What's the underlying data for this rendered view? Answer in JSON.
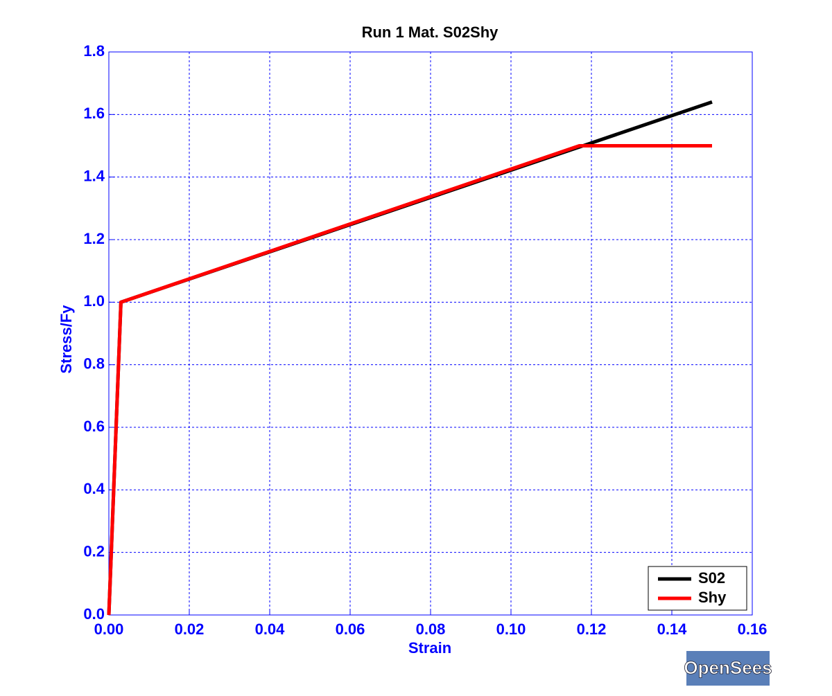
{
  "chart_data": {
    "type": "line",
    "title": "Run 1   Mat. S02Shy",
    "x_label": "Strain",
    "y_label": "Stress/Fy",
    "x": [
      0,
      0.003,
      0.117,
      0.15
    ],
    "series": [
      {
        "name": "S02",
        "color": "#000000",
        "values": [
          0,
          1.0,
          1.496,
          1.64
        ]
      },
      {
        "name": "Shy",
        "color": "#ff0000",
        "values": [
          0,
          1.0,
          1.5,
          1.5
        ]
      }
    ],
    "xlim": [
      0,
      0.16
    ],
    "xticks": [
      {
        "value": 0,
        "label": "0.00"
      },
      0.02,
      0.04,
      0.06,
      0.08,
      {
        "value": 0.1,
        "label": "0.10"
      },
      0.12,
      0.14,
      0.16
    ],
    "ylim": [
      0,
      1.8
    ],
    "yticks": [
      {
        "value": 0,
        "label": "0.0"
      },
      0.2,
      0.4,
      0.6,
      0.8,
      {
        "value": 1,
        "label": "1.0"
      },
      1.2,
      1.4,
      1.6,
      1.8
    ],
    "grid": true,
    "legend": "lower right"
  },
  "logo": "OpenSees"
}
